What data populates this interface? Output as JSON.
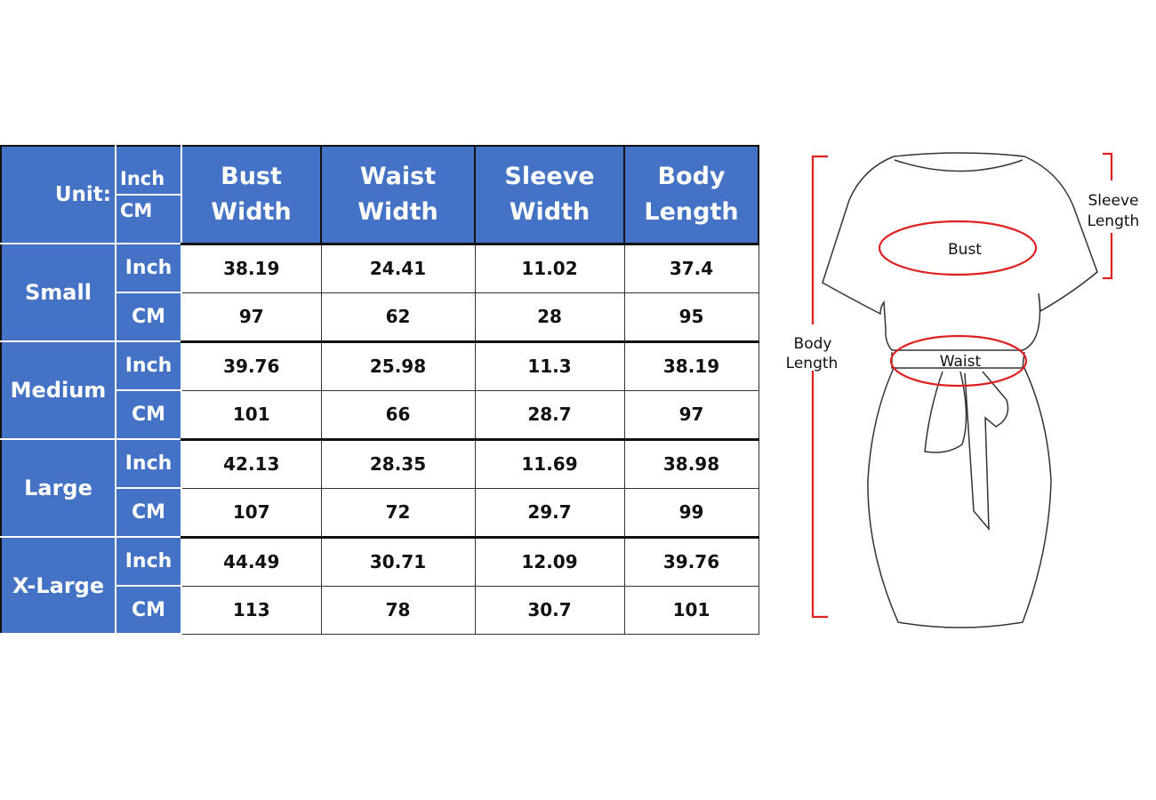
{
  "table": {
    "unit_label": "Unit:",
    "unit_options": [
      "Inch",
      "CM"
    ],
    "headers": [
      {
        "line1": "Bust",
        "line2": "Width"
      },
      {
        "line1": "Waist",
        "line2": "Width"
      },
      {
        "line1": "Sleeve",
        "line2": "Width"
      },
      {
        "line1": "Body",
        "line2": "Length"
      }
    ],
    "header_color": "#4472c4",
    "sizes": [
      {
        "name": "Small",
        "rows": [
          {
            "unit": "Inch",
            "values": [
              "38.19",
              "24.41",
              "11.02",
              "37.4"
            ]
          },
          {
            "unit": "CM",
            "values": [
              "97",
              "62",
              "28",
              "95"
            ]
          }
        ]
      },
      {
        "name": "Medium",
        "rows": [
          {
            "unit": "Inch",
            "values": [
              "39.76",
              "25.98",
              "11.3",
              "38.19"
            ]
          },
          {
            "unit": "CM",
            "values": [
              "101",
              "66",
              "28.7",
              "97"
            ]
          }
        ]
      },
      {
        "name": "Large",
        "rows": [
          {
            "unit": "Inch",
            "values": [
              "42.13",
              "28.35",
              "11.69",
              "38.98"
            ]
          },
          {
            "unit": "CM",
            "values": [
              "107",
              "72",
              "29.7",
              "99"
            ]
          }
        ]
      },
      {
        "name": "X-Large",
        "rows": [
          {
            "unit": "Inch",
            "values": [
              "44.49",
              "30.71",
              "12.09",
              "39.76"
            ]
          },
          {
            "unit": "CM",
            "values": [
              "113",
              "78",
              "30.7",
              "101"
            ]
          }
        ]
      }
    ]
  },
  "diagram": {
    "bust": "Bust",
    "waist": "Waist",
    "sleeve_length": [
      "Sleeve",
      "Length"
    ],
    "body_length": [
      "Body",
      "Length"
    ],
    "marker_color": "#e02020"
  }
}
